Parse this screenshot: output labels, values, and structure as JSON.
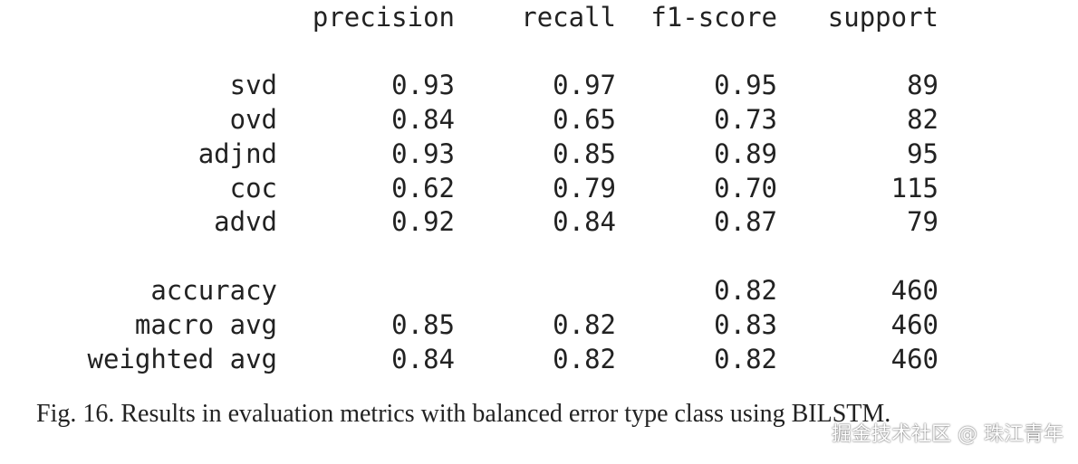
{
  "report": {
    "headers": [
      "precision",
      "recall",
      "f1-score",
      "support"
    ],
    "class_rows": [
      {
        "label": "svd",
        "precision": "0.93",
        "recall": "0.97",
        "f1": "0.95",
        "support": "89"
      },
      {
        "label": "ovd",
        "precision": "0.84",
        "recall": "0.65",
        "f1": "0.73",
        "support": "82"
      },
      {
        "label": "adjnd",
        "precision": "0.93",
        "recall": "0.85",
        "f1": "0.89",
        "support": "95"
      },
      {
        "label": "coc",
        "precision": "0.62",
        "recall": "0.79",
        "f1": "0.70",
        "support": "115"
      },
      {
        "label": "advd",
        "precision": "0.92",
        "recall": "0.84",
        "f1": "0.87",
        "support": "79"
      }
    ],
    "summary_rows": [
      {
        "label": "accuracy",
        "precision": "",
        "recall": "",
        "f1": "0.82",
        "support": "460"
      },
      {
        "label": "macro avg",
        "precision": "0.85",
        "recall": "0.82",
        "f1": "0.83",
        "support": "460"
      },
      {
        "label": "weighted avg",
        "precision": "0.84",
        "recall": "0.82",
        "f1": "0.82",
        "support": "460"
      }
    ]
  },
  "caption": "Fig. 16.  Results in evaluation metrics with balanced error type class using BILSTM.",
  "watermark": "掘金技术社区 @ 珠江青年"
}
